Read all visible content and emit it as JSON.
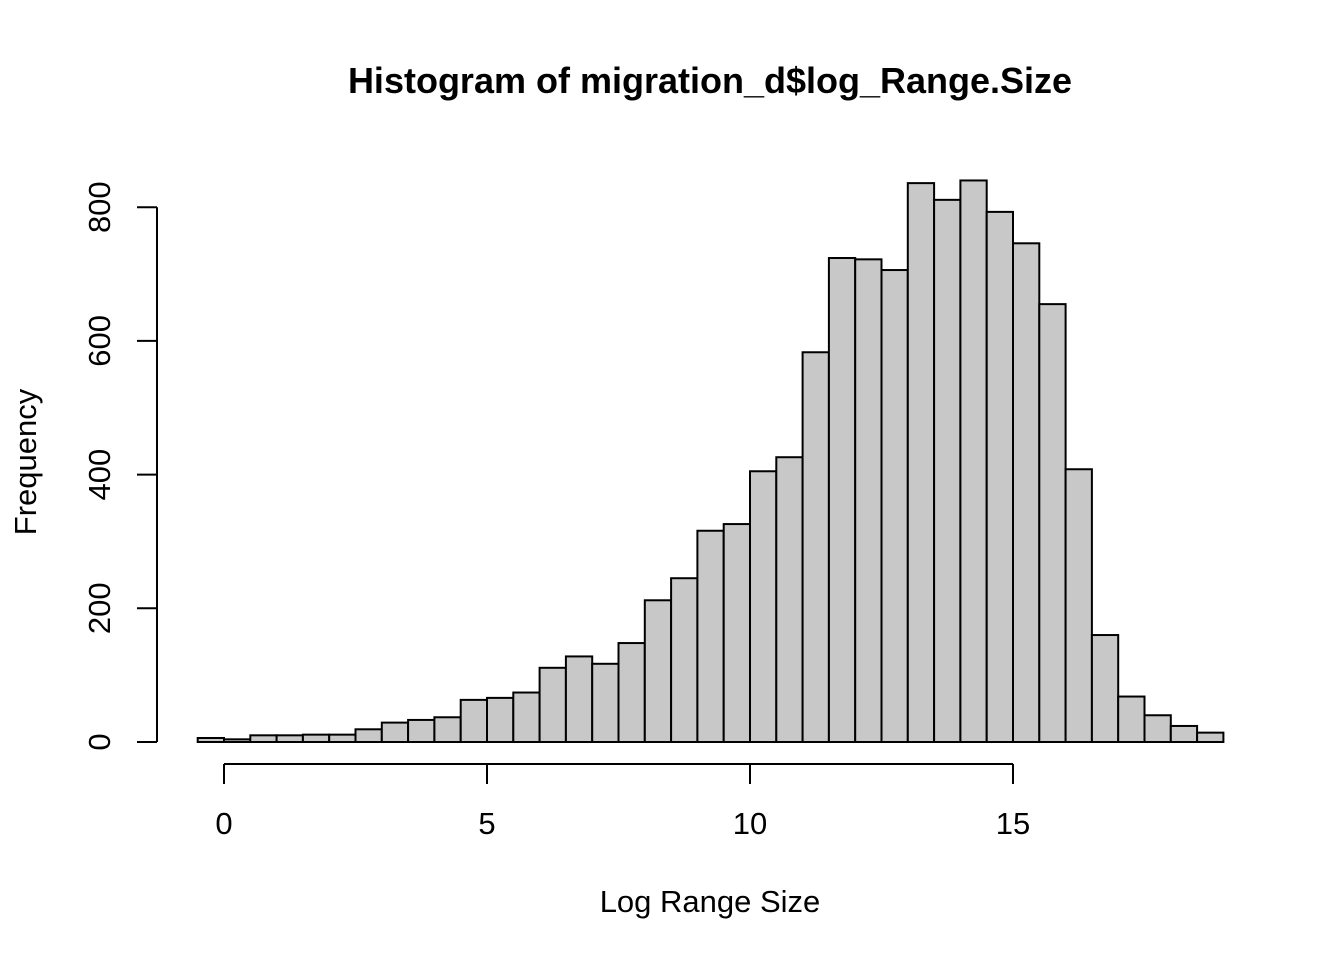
{
  "chart_data": {
    "type": "bar",
    "title": "Histogram of migration_d$log_Range.Size",
    "xlabel": "Log Range Size",
    "ylabel": "Frequency",
    "bin_width": 0.5,
    "x_start": -0.5,
    "bin_edges": [
      -0.5,
      0,
      0.5,
      1,
      1.5,
      2,
      2.5,
      3,
      3.5,
      4,
      4.5,
      5,
      5.5,
      6,
      6.5,
      7,
      7.5,
      8,
      8.5,
      9,
      9.5,
      10,
      10.5,
      11,
      11.5,
      12,
      12.5,
      13,
      13.5,
      14,
      14.5,
      15,
      15.5,
      16,
      16.5,
      17,
      17.5,
      18,
      18.5,
      19
    ],
    "values": [
      6,
      4,
      10,
      10,
      11,
      11,
      19,
      29,
      33,
      37,
      63,
      66,
      74,
      111,
      128,
      117,
      148,
      212,
      245,
      316,
      326,
      405,
      426,
      583,
      724,
      722,
      706,
      836,
      811,
      840,
      793,
      746,
      655,
      408,
      160,
      68,
      40,
      24,
      14
    ],
    "xlim": [
      -0.5,
      19
    ],
    "ylim": [
      0,
      840
    ],
    "x_ticks": [
      0,
      5,
      10,
      15
    ],
    "x_tick_labels": [
      "0",
      "5",
      "10",
      "15"
    ],
    "y_ticks": [
      0,
      200,
      400,
      600,
      800
    ],
    "y_tick_labels": [
      "0",
      "200",
      "400",
      "600",
      "800"
    ],
    "bar_fill": "#c8c8c8",
    "bar_stroke": "#000000",
    "grid": false
  }
}
